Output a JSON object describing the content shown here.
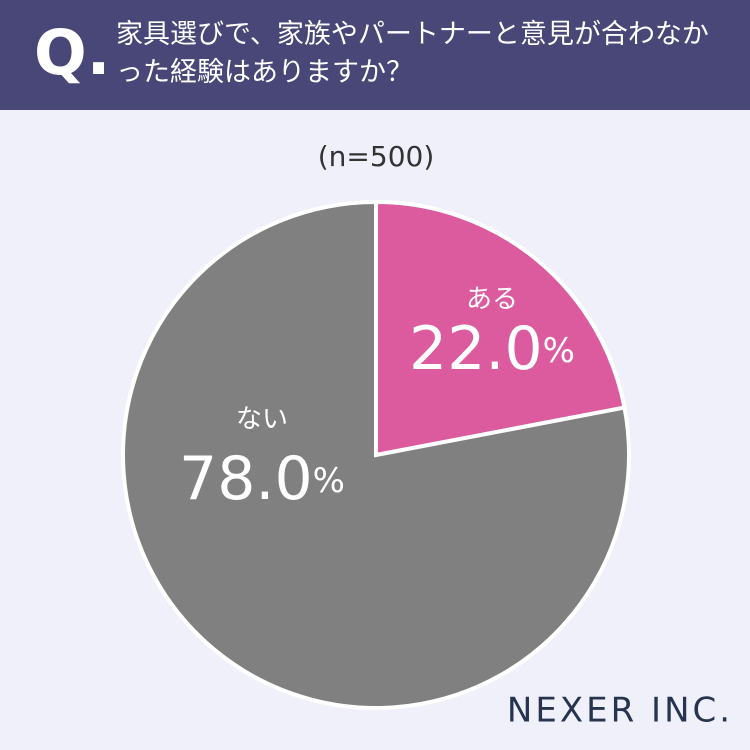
{
  "q_label": "Q.",
  "logo": "NEXER INC.",
  "chart_data": {
    "type": "pie",
    "title": "家具選びで、家族やパートナーと意見が合わなかった経験はありますか？",
    "subtitle": "(n=500)",
    "categories": [
      "ある",
      "ない"
    ],
    "values": [
      22.0,
      78.0
    ],
    "value_labels": [
      "22.0%",
      "78.0%"
    ],
    "colors": [
      "#dc5b9f",
      "#808080"
    ]
  }
}
